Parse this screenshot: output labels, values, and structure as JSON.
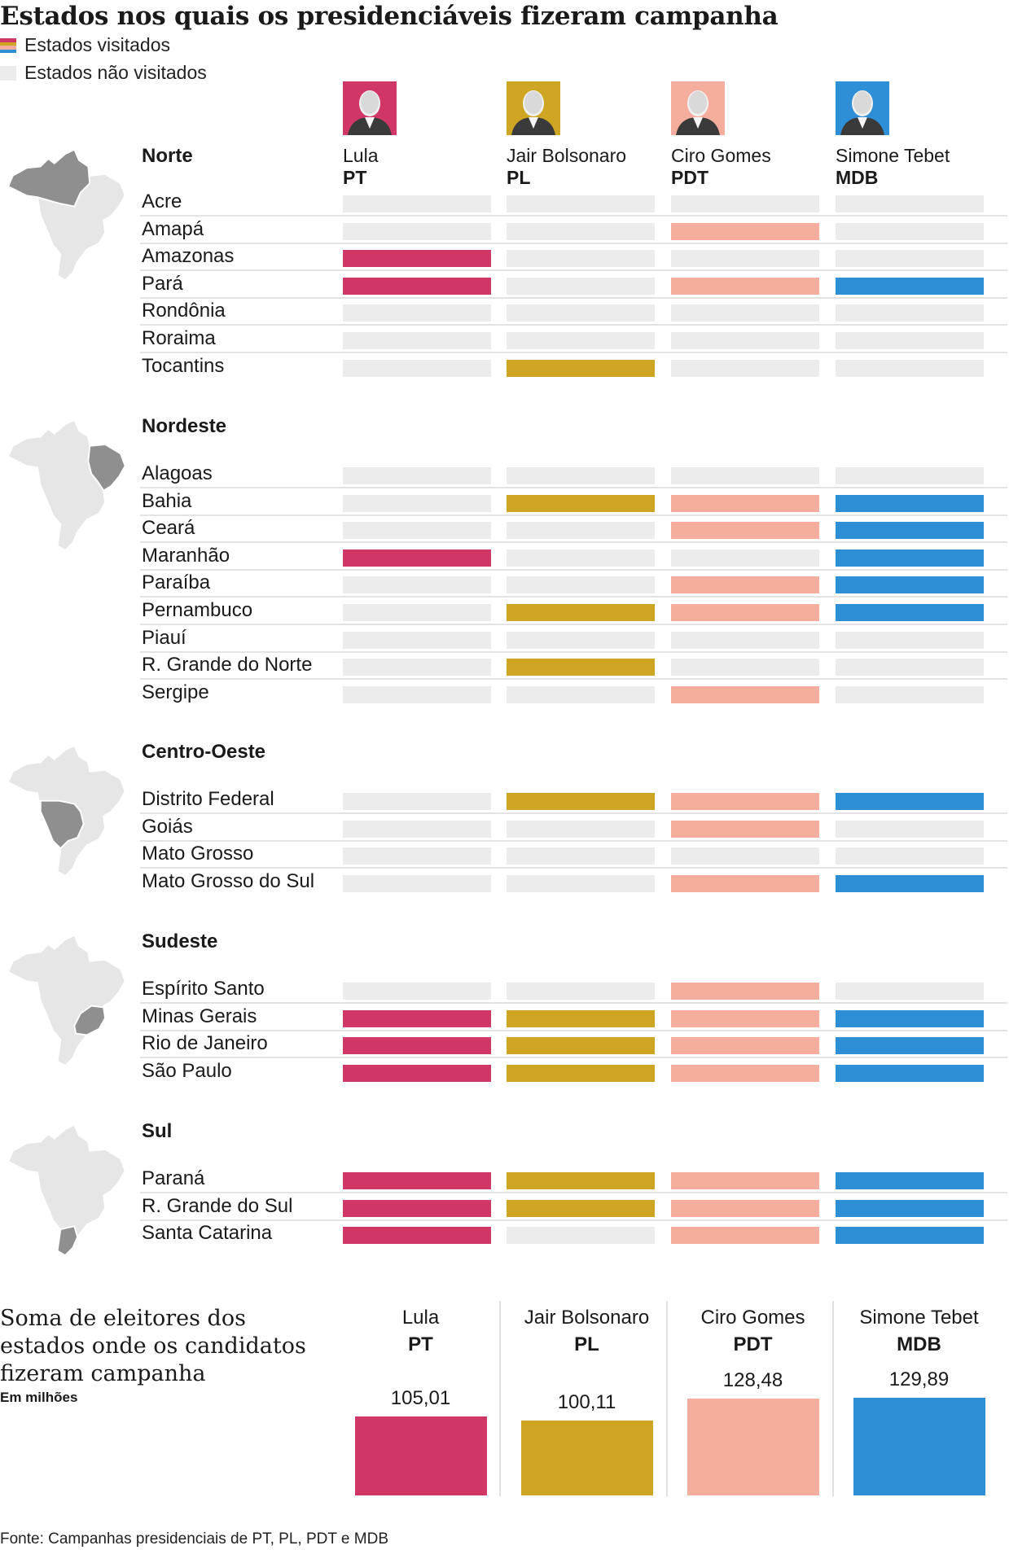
{
  "title": "Estados nos quais os presidenciáveis fizeram campanha",
  "legend": {
    "visited": "Estados visitados",
    "not_visited": "Estados não visitados",
    "not_visited_color": "#ececec"
  },
  "candidates": [
    {
      "name": "Lula",
      "party": "PT",
      "color": "#d13766",
      "photo_bg": "#d13766",
      "photo_icon": "portrait-icon"
    },
    {
      "name": "Jair Bolsonaro",
      "party": "PL",
      "color": "#cfa623",
      "photo_bg": "#cfa623",
      "photo_icon": "portrait-icon"
    },
    {
      "name": "Ciro Gomes",
      "party": "PDT",
      "color": "#f5ae9d",
      "photo_bg": "#f5ae9d",
      "photo_icon": "portrait-icon"
    },
    {
      "name": "Simone Tebet",
      "party": "MDB",
      "color": "#2f8fd6",
      "photo_bg": "#2f8fd6",
      "photo_icon": "portrait-icon"
    }
  ],
  "regions": [
    {
      "name": "Norte",
      "states": [
        {
          "name": "Acre",
          "visited": [
            false,
            false,
            false,
            false
          ]
        },
        {
          "name": "Amapá",
          "visited": [
            false,
            false,
            true,
            false
          ]
        },
        {
          "name": "Amazonas",
          "visited": [
            true,
            false,
            false,
            false
          ]
        },
        {
          "name": "Pará",
          "visited": [
            true,
            false,
            true,
            true
          ]
        },
        {
          "name": "Rondônia",
          "visited": [
            false,
            false,
            false,
            false
          ]
        },
        {
          "name": "Roraima",
          "visited": [
            false,
            false,
            false,
            false
          ]
        },
        {
          "name": "Tocantins",
          "visited": [
            false,
            true,
            false,
            false
          ]
        }
      ]
    },
    {
      "name": "Nordeste",
      "states": [
        {
          "name": "Alagoas",
          "visited": [
            false,
            false,
            false,
            false
          ]
        },
        {
          "name": "Bahia",
          "visited": [
            false,
            true,
            true,
            true
          ]
        },
        {
          "name": "Ceará",
          "visited": [
            false,
            false,
            true,
            true
          ]
        },
        {
          "name": "Maranhão",
          "visited": [
            true,
            false,
            false,
            true
          ]
        },
        {
          "name": "Paraíba",
          "visited": [
            false,
            false,
            true,
            true
          ]
        },
        {
          "name": "Pernambuco",
          "visited": [
            false,
            true,
            true,
            true
          ]
        },
        {
          "name": "Piauí",
          "visited": [
            false,
            false,
            false,
            false
          ]
        },
        {
          "name": "R. Grande do Norte",
          "visited": [
            false,
            true,
            false,
            false
          ]
        },
        {
          "name": "Sergipe",
          "visited": [
            false,
            false,
            true,
            false
          ]
        }
      ]
    },
    {
      "name": "Centro-Oeste",
      "states": [
        {
          "name": "Distrito Federal",
          "visited": [
            false,
            true,
            true,
            true
          ]
        },
        {
          "name": "Goiás",
          "visited": [
            false,
            false,
            true,
            false
          ]
        },
        {
          "name": "Mato Grosso",
          "visited": [
            false,
            false,
            false,
            false
          ]
        },
        {
          "name": "Mato Grosso do Sul",
          "visited": [
            false,
            false,
            true,
            true
          ]
        }
      ]
    },
    {
      "name": "Sudeste",
      "states": [
        {
          "name": "Espírito Santo",
          "visited": [
            false,
            false,
            true,
            false
          ]
        },
        {
          "name": "Minas Gerais",
          "visited": [
            true,
            true,
            true,
            true
          ]
        },
        {
          "name": "Rio de Janeiro",
          "visited": [
            true,
            true,
            true,
            true
          ]
        },
        {
          "name": "São Paulo",
          "visited": [
            true,
            true,
            true,
            true
          ]
        }
      ]
    },
    {
      "name": "Sul",
      "states": [
        {
          "name": "Paraná",
          "visited": [
            true,
            true,
            true,
            true
          ]
        },
        {
          "name": "R. Grande do Sul",
          "visited": [
            true,
            true,
            true,
            true
          ]
        },
        {
          "name": "Santa Catarina",
          "visited": [
            true,
            false,
            true,
            true
          ]
        }
      ]
    }
  ],
  "summary": {
    "title": "Soma de eleitores dos estados onde os candidatos fizeram campanha",
    "unit": "Em milhões"
  },
  "chart_data": {
    "type": "bar",
    "title": "Soma de eleitores dos estados onde os candidatos fizeram campanha",
    "ylabel": "Em milhões",
    "categories": [
      "Lula",
      "Jair Bolsonaro",
      "Ciro Gomes",
      "Simone Tebet"
    ],
    "values": [
      105.01,
      100.11,
      128.48,
      129.89
    ],
    "value_labels": [
      "105,01",
      "100,11",
      "128,48",
      "129,89"
    ],
    "ylim": [
      0,
      130
    ],
    "grid": false
  },
  "source": "Fonte: Campanhas presidenciais de PT, PL, PDT e MDB"
}
